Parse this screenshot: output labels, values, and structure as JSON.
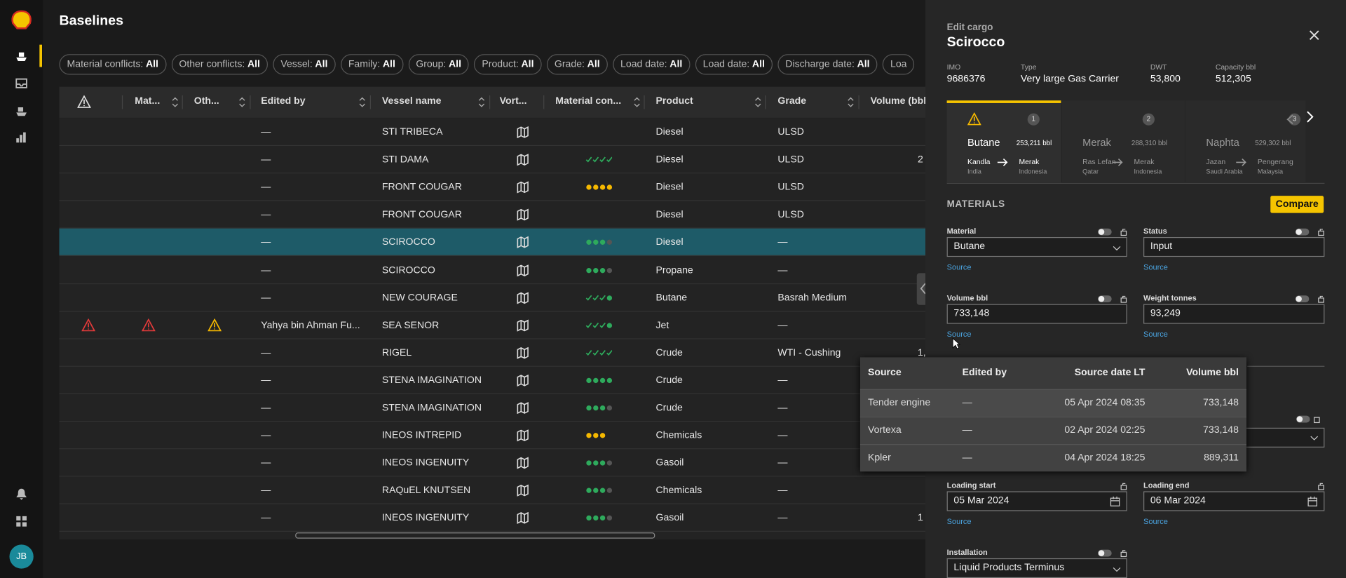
{
  "header": {
    "title": "Baselines"
  },
  "filters": [
    {
      "label": "Material conflicts:",
      "value": "All"
    },
    {
      "label": "Other conflicts:",
      "value": "All"
    },
    {
      "label": "Vessel:",
      "value": "All"
    },
    {
      "label": "Family:",
      "value": "All"
    },
    {
      "label": "Group:",
      "value": "All"
    },
    {
      "label": "Product:",
      "value": "All"
    },
    {
      "label": "Grade:",
      "value": "All"
    },
    {
      "label": "Load date:",
      "value": "All"
    },
    {
      "label": "Load date:",
      "value": "All"
    },
    {
      "label": "Discharge date:",
      "value": "All"
    },
    {
      "label": "Loa"
    }
  ],
  "table": {
    "columns": [
      "Mat...",
      "Oth...",
      "Edited by",
      "Vessel name",
      "Vort...",
      "Material con...",
      "Product",
      "Grade",
      "Volume (bbl"
    ],
    "rows": [
      {
        "edited_by": "—",
        "vessel": "STI TRIBECA",
        "product": "Diesel",
        "grade": "ULSD"
      },
      {
        "edited_by": "—",
        "vessel": "STI DAMA",
        "product": "Diesel",
        "grade": "ULSD",
        "volume": "2"
      },
      {
        "edited_by": "—",
        "vessel": "FRONT COUGAR",
        "product": "Diesel",
        "grade": "ULSD"
      },
      {
        "edited_by": "—",
        "vessel": "FRONT COUGAR",
        "product": "Diesel",
        "grade": "ULSD"
      },
      {
        "edited_by": "—",
        "vessel": "SCIROCCO",
        "product": "Diesel",
        "grade": "—"
      },
      {
        "edited_by": "—",
        "vessel": "SCIROCCO",
        "product": "Propane",
        "grade": "—"
      },
      {
        "edited_by": "—",
        "vessel": "NEW COURAGE",
        "product": "Butane",
        "grade": "Basrah Medium"
      },
      {
        "edited_by": "Yahya bin Ahman Fu...",
        "vessel": "SEA SENOR",
        "product": "Jet",
        "grade": "—"
      },
      {
        "edited_by": "—",
        "vessel": "RIGEL",
        "product": "Crude",
        "grade": "WTI - Cushing",
        "volume": "1,"
      },
      {
        "edited_by": "—",
        "vessel": "STENA IMAGINATION",
        "product": "Crude",
        "grade": "—"
      },
      {
        "edited_by": "—",
        "vessel": "STENA IMAGINATION",
        "product": "Crude",
        "grade": "—"
      },
      {
        "edited_by": "—",
        "vessel": "INEOS INTREPID",
        "product": "Chemicals",
        "grade": "—"
      },
      {
        "edited_by": "—",
        "vessel": "INEOS INGENUITY",
        "product": "Gasoil",
        "grade": "—"
      },
      {
        "edited_by": "—",
        "vessel": "RAQuEL KNUTSEN",
        "product": "Chemicals",
        "grade": "—"
      },
      {
        "edited_by": "—",
        "vessel": "INEOS INGENUITY",
        "product": "Gasoil",
        "grade": "—",
        "volume": "1"
      }
    ]
  },
  "panel": {
    "subtitle": "Edit cargo",
    "title": "Scirocco",
    "info": [
      {
        "label": "IMO",
        "value": "9686376"
      },
      {
        "label": "Type",
        "value": "Very large Gas Carrier"
      },
      {
        "label": "DWT",
        "value": "53,800"
      },
      {
        "label": "Capacity bbl",
        "value": "512,305"
      }
    ],
    "tabs": [
      {
        "name": "Butane",
        "volume": "253,211 bbl",
        "number": "1",
        "from": "Kandla",
        "from_country": "India",
        "to": "Merak",
        "to_country": "Indonesia"
      },
      {
        "name": "Merak",
        "volume": "288,310 bbl",
        "number": "2",
        "from": "Ras Lefan",
        "from_country": "Qatar",
        "to": "Merak",
        "to_country": "Indonesia"
      },
      {
        "name": "Naphta",
        "volume": "529,302 bbl",
        "number": "3",
        "from": "Jazan",
        "from_country": "Saudi Arabia",
        "to": "Pengerang",
        "to_country": "Malaysia"
      }
    ],
    "section": "MATERIALS",
    "compare": "Compare",
    "fields": [
      {
        "label": "Material",
        "value": "Butane",
        "source": "Source"
      },
      {
        "label": "Status",
        "value": "Input",
        "source": "Source"
      },
      {
        "label": "Volume bbl",
        "value": "733,148",
        "source": "Source"
      },
      {
        "label": "Weight tonnes",
        "value": "93,249",
        "source": "Source"
      },
      {
        "label": "Loading start",
        "value": "05 Mar 2024",
        "source": "Source"
      },
      {
        "label": "Loading end",
        "value": "06 Mar 2024",
        "source": "Source"
      },
      {
        "label": "Installation",
        "value": "Liquid Products Terminus"
      }
    ]
  },
  "popup": {
    "columns": [
      "Source",
      "Edited by",
      "Source date LT",
      "Volume bbl"
    ],
    "rows": [
      [
        "Tender engine",
        "—",
        "05 Apr 2024 08:35",
        "733,148"
      ],
      [
        "Vortexa",
        "—",
        "02 Apr 2024 02:25",
        "733,148"
      ],
      [
        "Kpler",
        "—",
        "04 Apr 2024 18:25",
        "889,311"
      ]
    ]
  },
  "user": {
    "initials": "JB"
  }
}
